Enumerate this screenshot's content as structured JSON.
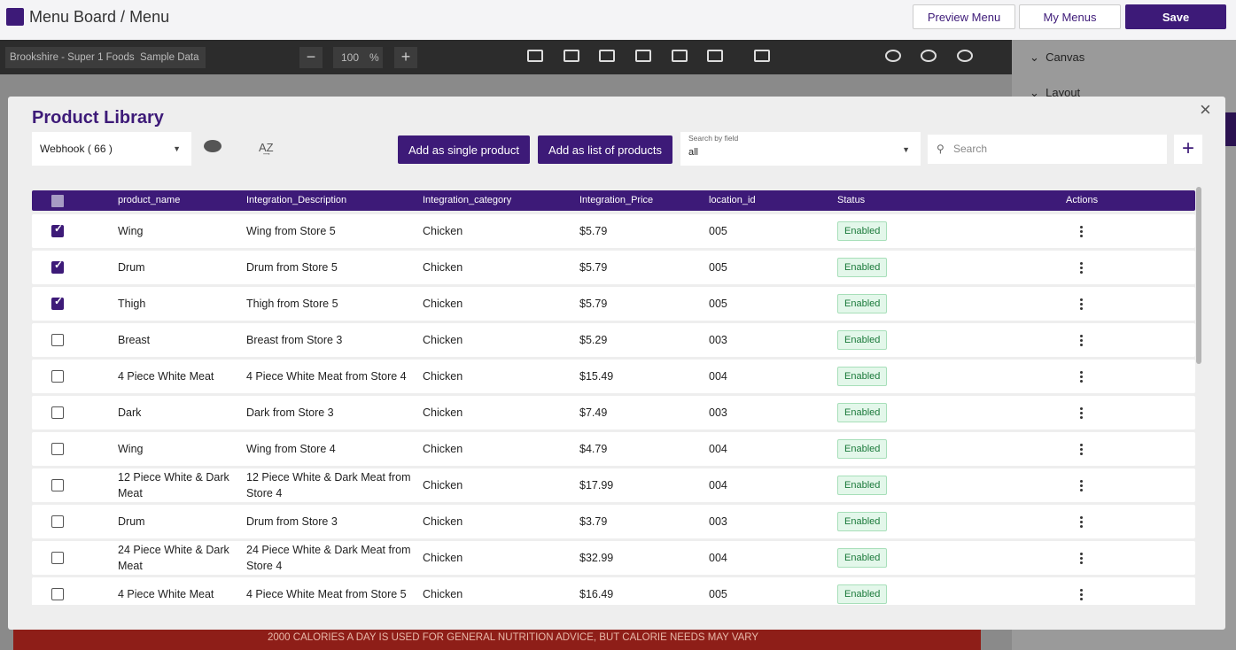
{
  "header": {
    "title": "Menu Board / Menu",
    "buttons": [
      "Preview Menu",
      "My Menus",
      "Save"
    ]
  },
  "toolbar": {
    "source": "Brookshire - Super 1 Foods  Sample Data",
    "zoom": "100",
    "zoom_unit": "%"
  },
  "side_panel": {
    "sections": [
      "Canvas",
      "Layout"
    ]
  },
  "canvas": {
    "footer_text": "2000 CALORIES A DAY IS USED FOR GENERAL NUTRITION ADVICE, BUT CALORIE NEEDS MAY VARY"
  },
  "modal": {
    "title": "Product Library",
    "source_select": "Webhook ( 66 )",
    "buttons": [
      "Add as single product",
      "Add as list of products"
    ],
    "search_field": {
      "label": "Search by field",
      "value": "all"
    },
    "search_placeholder": "Search"
  },
  "table": {
    "columns": [
      "product_name",
      "Integration_Description",
      "Integration_category",
      "Integration_Price",
      "location_id",
      "Status",
      "Actions"
    ],
    "rows": [
      {
        "checked": true,
        "cells": [
          "Wing",
          "Wing from Store 5",
          "Chicken",
          "$5.79",
          "005",
          "Enabled"
        ]
      },
      {
        "checked": true,
        "cells": [
          "Drum",
          "Drum from Store 5",
          "Chicken",
          "$5.79",
          "005",
          "Enabled"
        ]
      },
      {
        "checked": true,
        "cells": [
          "Thigh",
          "Thigh from Store 5",
          "Chicken",
          "$5.79",
          "005",
          "Enabled"
        ]
      },
      {
        "checked": false,
        "cells": [
          "Breast",
          "Breast from Store 3",
          "Chicken",
          "$5.29",
          "003",
          "Enabled"
        ]
      },
      {
        "checked": false,
        "cells": [
          "4 Piece White Meat",
          "4 Piece White Meat from Store 4",
          "Chicken",
          "$15.49",
          "004",
          "Enabled"
        ]
      },
      {
        "checked": false,
        "cells": [
          "Dark",
          "Dark from Store 3",
          "Chicken",
          "$7.49",
          "003",
          "Enabled"
        ]
      },
      {
        "checked": false,
        "cells": [
          "Wing",
          "Wing from Store 4",
          "Chicken",
          "$4.79",
          "004",
          "Enabled"
        ]
      },
      {
        "checked": false,
        "cells": [
          "12 Piece White & Dark Meat",
          "12 Piece White & Dark Meat from Store 4",
          "Chicken",
          "$17.99",
          "004",
          "Enabled"
        ]
      },
      {
        "checked": false,
        "cells": [
          "Drum",
          "Drum from Store 3",
          "Chicken",
          "$3.79",
          "003",
          "Enabled"
        ]
      },
      {
        "checked": false,
        "cells": [
          "24 Piece White & Dark Meat",
          "24 Piece White & Dark Meat from Store 4",
          "Chicken",
          "$32.99",
          "004",
          "Enabled"
        ]
      },
      {
        "checked": false,
        "cells": [
          "4 Piece White Meat",
          "4 Piece White Meat from Store 5",
          "Chicken",
          "$16.49",
          "005",
          "Enabled"
        ]
      }
    ]
  }
}
